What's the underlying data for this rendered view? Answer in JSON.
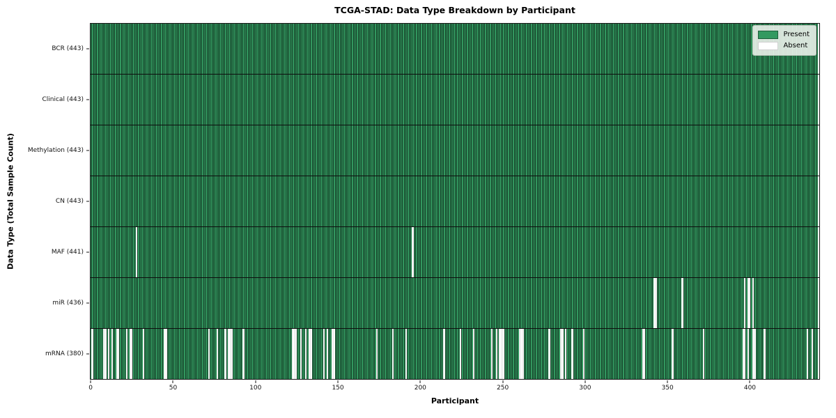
{
  "title": "TCGA-STAD: Data Type Breakdown by Participant",
  "xlabel": "Participant",
  "ylabel": "Data Type (Total Sample Count)",
  "legend": {
    "present_label": "Present",
    "absent_label": "Absent"
  },
  "colors": {
    "present": "#339960",
    "absent": "#ffffff",
    "bar_edge": "rgba(0,0,0,0.62)",
    "legend_bg": "rgba(239,244,238,0.88)"
  },
  "chart_data": {
    "type": "heatmap",
    "title": "TCGA-STAD: Data Type Breakdown by Participant",
    "xlabel": "Participant",
    "ylabel": "Data Type (Total Sample Count)",
    "legend_entries": [
      "Present",
      "Absent"
    ],
    "legend_position": "upper right",
    "grid": false,
    "n_participants": 443,
    "x_range": [
      0,
      443
    ],
    "x_ticks": [
      0,
      50,
      100,
      150,
      200,
      250,
      300,
      350,
      400
    ],
    "rows": [
      {
        "name": "BCR",
        "label": "BCR (443)",
        "present_count": 443,
        "absent_participants": []
      },
      {
        "name": "Clinical",
        "label": "Clinical (443)",
        "present_count": 443,
        "absent_participants": []
      },
      {
        "name": "Methylation",
        "label": "Methylation (443)",
        "present_count": 443,
        "absent_participants": []
      },
      {
        "name": "CN",
        "label": "CN (443)",
        "present_count": 443,
        "absent_participants": []
      },
      {
        "name": "MAF",
        "label": "MAF (441)",
        "present_count": 441,
        "absent_participants": [
          28,
          196
        ]
      },
      {
        "name": "miR",
        "label": "miR (436)",
        "present_count": 436,
        "absent_participants": [
          343,
          344,
          360,
          398,
          400,
          401,
          403
        ]
      },
      {
        "name": "mRNA",
        "label": "mRNA (380)",
        "present_count": 380,
        "absent_participants": [
          1,
          8,
          9,
          11,
          13,
          16,
          17,
          22,
          24,
          25,
          32,
          45,
          46,
          72,
          77,
          82,
          84,
          85,
          86,
          93,
          123,
          124,
          125,
          128,
          131,
          133,
          134,
          142,
          144,
          147,
          148,
          174,
          184,
          192,
          215,
          225,
          233,
          244,
          247,
          249,
          250,
          251,
          261,
          262,
          263,
          279,
          286,
          287,
          289,
          293,
          300,
          336,
          337,
          354,
          373,
          397,
          398,
          400,
          403,
          404,
          410,
          436,
          439
        ]
      }
    ]
  }
}
